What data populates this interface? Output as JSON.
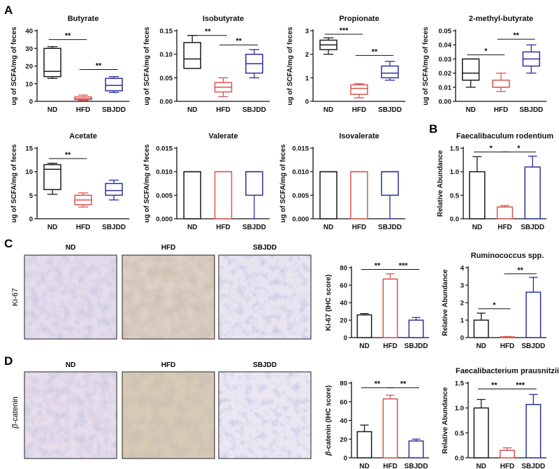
{
  "colors": {
    "ND": "#1a1a1a",
    "HFD": "#d9534f",
    "SBJDD": "#2b2f9e",
    "axis": "#111111"
  },
  "panel_labels": {
    "A": "A",
    "B": "B",
    "C": "C",
    "D": "D"
  },
  "groups": [
    "ND",
    "HFD",
    "SBJDD"
  ],
  "ylabels": {
    "scfa": "ug of SCFA/mg of feces",
    "relab": "Relative Abundance",
    "ki67": "Ki-67 (IHC score)",
    "bcat_prefix": "β",
    "bcat_rest": "-catenin (IHC score)"
  },
  "row_labels": {
    "ki67": "Ki-67",
    "bcat_prefix": "β",
    "bcat_rest": "-catenin"
  },
  "micro_titles": {
    "nd": "ND",
    "hfd": "HFD",
    "sbjdd": "SBJDD"
  },
  "chart_data": [
    {
      "id": "butyrate",
      "type": "box",
      "title": "Butyrate",
      "ylabel": "ug of SCFA/mg of feces",
      "ylim": [
        0,
        40
      ],
      "yticks": [
        "0",
        "10",
        "20",
        "30",
        "40"
      ],
      "categories": [
        "ND",
        "HFD",
        "SBJDD"
      ],
      "boxes": [
        {
          "min": 13,
          "q1": 14,
          "median": 17,
          "q3": 30,
          "max": 31
        },
        {
          "min": 0.5,
          "q1": 1,
          "median": 1.5,
          "q3": 2.5,
          "max": 3.5
        },
        {
          "min": 5,
          "q1": 6,
          "median": 9,
          "q3": 13,
          "max": 14
        }
      ],
      "sig": [
        {
          "from": 0,
          "to": 1,
          "label": "**",
          "y": 35
        },
        {
          "from": 1,
          "to": 2,
          "label": "**",
          "y": 18
        }
      ]
    },
    {
      "id": "isobutyrate",
      "type": "box",
      "title": "Isobutyrate",
      "ylabel": "ug of SCFA/mg of feces",
      "ylim": [
        0,
        0.15
      ],
      "yticks": [
        "0.00",
        "0.05",
        "0.10",
        "0.15"
      ],
      "categories": [
        "ND",
        "HFD",
        "SBJDD"
      ],
      "boxes": [
        {
          "min": 0.07,
          "q1": 0.07,
          "median": 0.09,
          "q3": 0.125,
          "max": 0.14
        },
        {
          "min": 0.01,
          "q1": 0.02,
          "median": 0.03,
          "q3": 0.04,
          "max": 0.05
        },
        {
          "min": 0.05,
          "q1": 0.06,
          "median": 0.08,
          "q3": 0.1,
          "max": 0.11
        }
      ],
      "sig": [
        {
          "from": 0,
          "to": 1,
          "label": "**",
          "y": 0.14
        },
        {
          "from": 1,
          "to": 2,
          "label": "**",
          "y": 0.12
        }
      ]
    },
    {
      "id": "propionate",
      "type": "box",
      "title": "Propionate",
      "ylabel": "ug of SCFA/mg of feces",
      "ylim": [
        0,
        3
      ],
      "yticks": [
        "0",
        "1",
        "2",
        "3"
      ],
      "categories": [
        "ND",
        "HFD",
        "SBJDD"
      ],
      "boxes": [
        {
          "min": 2.0,
          "q1": 2.2,
          "median": 2.4,
          "q3": 2.6,
          "max": 2.7
        },
        {
          "min": 0.15,
          "q1": 0.3,
          "median": 0.55,
          "q3": 0.7,
          "max": 0.75
        },
        {
          "min": 0.9,
          "q1": 1.0,
          "median": 1.2,
          "q3": 1.5,
          "max": 1.7
        }
      ],
      "sig": [
        {
          "from": 0,
          "to": 1,
          "label": "***",
          "y": 2.85
        },
        {
          "from": 1,
          "to": 2,
          "label": "**",
          "y": 1.95
        }
      ]
    },
    {
      "id": "methylbutyrate",
      "type": "box",
      "title": "2-methyl-butyrate",
      "ylabel": "ug of SCFA/mg of feces",
      "ylim": [
        0,
        0.05
      ],
      "yticks": [
        "0.00",
        "0.01",
        "0.02",
        "0.03",
        "0.04",
        "0.05"
      ],
      "categories": [
        "ND",
        "HFD",
        "SBJDD"
      ],
      "boxes": [
        {
          "min": 0.01,
          "q1": 0.015,
          "median": 0.02,
          "q3": 0.03,
          "max": 0.03
        },
        {
          "min": 0.007,
          "q1": 0.01,
          "median": 0.01,
          "q3": 0.015,
          "max": 0.02
        },
        {
          "min": 0.02,
          "q1": 0.025,
          "median": 0.03,
          "q3": 0.035,
          "max": 0.04
        }
      ],
      "sig": [
        {
          "from": 0,
          "to": 1,
          "label": "*",
          "y": 0.033
        },
        {
          "from": 1,
          "to": 2,
          "label": "**",
          "y": 0.044
        }
      ]
    },
    {
      "id": "acetate",
      "type": "box",
      "title": "Acetate",
      "ylabel": "ug of SCFA/mg of feces",
      "ylim": [
        0,
        15
      ],
      "yticks": [
        "0",
        "5",
        "10",
        "15"
      ],
      "categories": [
        "ND",
        "HFD",
        "SBJDD"
      ],
      "boxes": [
        {
          "min": 5.2,
          "q1": 6.2,
          "median": 10.5,
          "q3": 11.5,
          "max": 11.8
        },
        {
          "min": 2.5,
          "q1": 3.0,
          "median": 4.0,
          "q3": 5.0,
          "max": 5.5
        },
        {
          "min": 4.0,
          "q1": 5.0,
          "median": 6.0,
          "q3": 7.5,
          "max": 8.2
        }
      ],
      "sig": [
        {
          "from": 0,
          "to": 1,
          "label": "**",
          "y": 12.8
        }
      ]
    },
    {
      "id": "valerate",
      "type": "box",
      "title": "Valerate",
      "ylabel": "ug of SCFA/mg of feces",
      "ylim": [
        0,
        0.015
      ],
      "yticks": [
        "0.000",
        "0.005",
        "0.010",
        "0.015"
      ],
      "categories": [
        "ND",
        "HFD",
        "SBJDD"
      ],
      "boxes": [
        {
          "min": 0.0,
          "q1": 0.0,
          "median": 0.01,
          "q3": 0.01,
          "max": 0.01
        },
        {
          "min": 0.0,
          "q1": 0.0,
          "median": 0.01,
          "q3": 0.01,
          "max": 0.01
        },
        {
          "min": 0.0,
          "q1": 0.005,
          "median": 0.01,
          "q3": 0.01,
          "max": 0.01
        }
      ],
      "sig": []
    },
    {
      "id": "isovalerate",
      "type": "box",
      "title": "Isovalerate",
      "ylabel": "ug of SCFA/mg of feces",
      "ylim": [
        0,
        0.015
      ],
      "yticks": [
        "0.000",
        "0.005",
        "0.010",
        "0.015"
      ],
      "categories": [
        "ND",
        "HFD",
        "SBJDD"
      ],
      "boxes": [
        {
          "min": 0.0,
          "q1": 0.0,
          "median": 0.01,
          "q3": 0.01,
          "max": 0.01
        },
        {
          "min": 0.0,
          "q1": 0.0,
          "median": 0.01,
          "q3": 0.01,
          "max": 0.01
        },
        {
          "min": 0.0,
          "q1": 0.005,
          "median": 0.01,
          "q3": 0.01,
          "max": 0.01
        }
      ],
      "sig": []
    },
    {
      "id": "faecalibaculum",
      "type": "bar",
      "title": "Faecalibaculum rodentium",
      "ylabel": "Relative Abundance",
      "ylim": [
        0,
        1.5
      ],
      "yticks": [
        "0.0",
        "0.5",
        "1.0",
        "1.5"
      ],
      "categories": [
        "ND",
        "HFD",
        "SBJDD"
      ],
      "values": [
        1.0,
        0.25,
        1.1
      ],
      "errors": [
        0.32,
        0.03,
        0.23
      ],
      "sig": [
        {
          "from": 0,
          "to": 1,
          "label": "*",
          "y": 1.42
        },
        {
          "from": 1,
          "to": 2,
          "label": "*",
          "y": 1.42
        }
      ]
    },
    {
      "id": "ki67",
      "type": "bar",
      "title": "",
      "ylabel": "Ki-67 (IHC score)",
      "ylim": [
        0,
        80
      ],
      "yticks": [
        "0",
        "20",
        "40",
        "60",
        "80"
      ],
      "categories": [
        "ND",
        "HFD",
        "SBJDD"
      ],
      "values": [
        26,
        67,
        20
      ],
      "errors": [
        1.5,
        6,
        3
      ],
      "sig": [
        {
          "from": 0,
          "to": 1,
          "label": "**",
          "y": 78
        },
        {
          "from": 1,
          "to": 2,
          "label": "***",
          "y": 78
        }
      ]
    },
    {
      "id": "ruminococcus",
      "type": "bar",
      "title": "Ruminococcus spp.",
      "ylabel": "Relative Abundance",
      "ylim": [
        0,
        4
      ],
      "yticks": [
        "0",
        "1",
        "2",
        "3",
        "4"
      ],
      "categories": [
        "ND",
        "HFD",
        "SBJDD"
      ],
      "values": [
        1.0,
        0.04,
        2.6
      ],
      "errors": [
        0.4,
        0.02,
        0.85
      ],
      "sig": [
        {
          "from": 0,
          "to": 1,
          "label": "*",
          "y": 1.65
        },
        {
          "from": 1,
          "to": 2,
          "label": "**",
          "y": 3.65
        }
      ]
    },
    {
      "id": "bcatenin",
      "type": "bar",
      "title": "",
      "ylabel": "β-catenin (IHC score)",
      "ylim": [
        0,
        80
      ],
      "yticks": [
        "0",
        "20",
        "40",
        "60",
        "80"
      ],
      "categories": [
        "ND",
        "HFD",
        "SBJDD"
      ],
      "values": [
        28,
        63,
        18
      ],
      "errors": [
        7,
        4,
        2
      ],
      "sig": [
        {
          "from": 0,
          "to": 1,
          "label": "**",
          "y": 75
        },
        {
          "from": 1,
          "to": 2,
          "label": "**",
          "y": 75
        }
      ]
    },
    {
      "id": "faecalibacterium",
      "type": "bar",
      "title": "Faecalibacterium prausnitzii",
      "ylabel": "Relative Abundance",
      "ylim": [
        0,
        1.5
      ],
      "yticks": [
        "0.0",
        "0.5",
        "1.0",
        "1.5"
      ],
      "categories": [
        "ND",
        "HFD",
        "SBJDD"
      ],
      "values": [
        1.0,
        0.15,
        1.07
      ],
      "errors": [
        0.17,
        0.05,
        0.2
      ],
      "sig": [
        {
          "from": 0,
          "to": 1,
          "label": "**",
          "y": 1.38
        },
        {
          "from": 1,
          "to": 2,
          "label": "***",
          "y": 1.38
        }
      ]
    }
  ]
}
